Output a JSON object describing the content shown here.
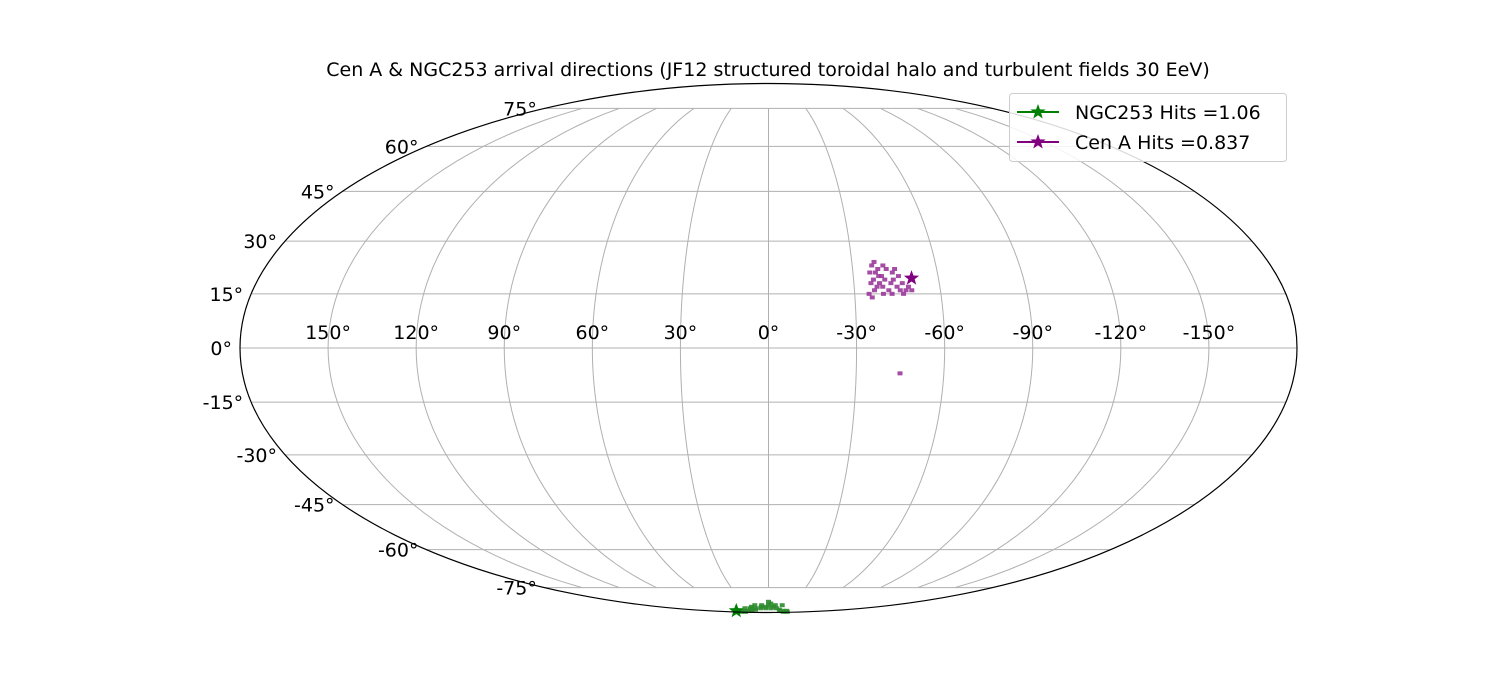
{
  "chart_data": {
    "type": "scatter",
    "projection": "mollweide",
    "title": "Cen A & NGC253 arrival directions (JF12 structured toroidal halo and turbulent fields 30 EeV)",
    "grid": true,
    "legend_position": "top-right",
    "x_ticks": [
      150,
      120,
      90,
      60,
      30,
      0,
      -30,
      -60,
      -90,
      -120,
      -150
    ],
    "x_tick_labels": [
      "150°",
      "120°",
      "90°",
      "60°",
      "30°",
      "0°",
      "-30°",
      "-60°",
      "-90°",
      "-120°",
      "-150°"
    ],
    "y_ticks": [
      75,
      60,
      45,
      30,
      15,
      0,
      -15,
      -30,
      -45,
      -60,
      -75
    ],
    "y_tick_labels": [
      "75°",
      "60°",
      "45°",
      "30°",
      "15°",
      "0°",
      "-15°",
      "-30°",
      "-45°",
      "-60°",
      "-75°"
    ],
    "xlim": [
      180,
      -180
    ],
    "ylim": [
      -90,
      90
    ],
    "series": [
      {
        "name": "NGC253 Hits =1.06",
        "color": "#008000",
        "marker": "star",
        "source": {
          "lon": 97.4,
          "lat": -88.0
        },
        "points": [
          [
            0,
            -84
          ],
          [
            -10,
            -84
          ],
          [
            10,
            -84
          ],
          [
            20,
            -84
          ],
          [
            -20,
            -84
          ],
          [
            -5,
            -86
          ],
          [
            5,
            -86
          ],
          [
            15,
            -86
          ],
          [
            -15,
            -86
          ],
          [
            25,
            -86
          ],
          [
            30,
            -87
          ],
          [
            40,
            -87
          ],
          [
            -25,
            -87
          ],
          [
            50,
            -88
          ],
          [
            60,
            -88
          ],
          [
            70,
            -88
          ],
          [
            80,
            -88
          ],
          [
            90,
            -88
          ],
          [
            -35,
            -88
          ],
          [
            -45,
            -88
          ],
          [
            -55,
            -88
          ],
          [
            110,
            -89
          ],
          [
            130,
            -89
          ],
          [
            -70,
            -89
          ],
          [
            -90,
            -89
          ],
          [
            0,
            -82
          ],
          [
            -3,
            -83
          ],
          [
            4,
            -85
          ],
          [
            12,
            -85
          ],
          [
            -8,
            -85
          ],
          [
            28,
            -85
          ],
          [
            35,
            -86
          ],
          [
            45,
            -86
          ]
        ]
      },
      {
        "name": "Cen A Hits =0.837",
        "color": "#800080",
        "marker": "star",
        "source": {
          "lon": -50.5,
          "lat": 19.4
        },
        "points": [
          [
            -38,
            24
          ],
          [
            -37,
            23
          ],
          [
            -39,
            22
          ],
          [
            -36,
            21
          ],
          [
            -38,
            21
          ],
          [
            -40,
            20
          ],
          [
            -41,
            19
          ],
          [
            -39,
            18
          ],
          [
            -37,
            19
          ],
          [
            -36,
            18
          ],
          [
            -38,
            17
          ],
          [
            -40,
            17
          ],
          [
            -42,
            16
          ],
          [
            -43,
            18
          ],
          [
            -44,
            19
          ],
          [
            -45,
            17
          ],
          [
            -46,
            16
          ],
          [
            -48,
            16
          ],
          [
            -49,
            17
          ],
          [
            -47,
            18
          ],
          [
            -46,
            20
          ],
          [
            -44,
            21
          ],
          [
            -42,
            22
          ],
          [
            -41,
            23
          ],
          [
            -39,
            20
          ],
          [
            -37,
            16
          ],
          [
            -35,
            15
          ],
          [
            -43,
            15
          ],
          [
            -47,
            15
          ],
          [
            -50,
            16
          ],
          [
            -45,
            22
          ],
          [
            -40,
            15
          ],
          [
            -36,
            14
          ],
          [
            -45,
            -7
          ]
        ]
      }
    ]
  }
}
